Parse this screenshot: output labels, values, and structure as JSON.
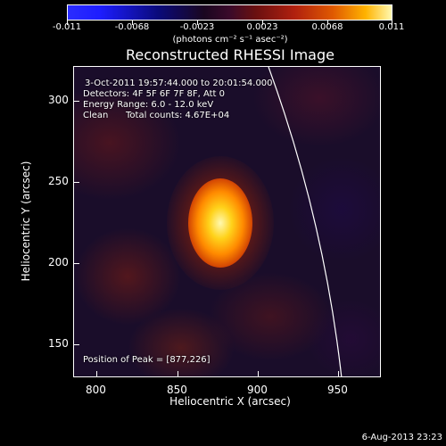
{
  "colorbar": {
    "ticks": [
      "-0.011",
      "-0.0068",
      "-0.0023",
      "0.0023",
      "0.0068",
      "0.011"
    ],
    "unit_text": "(photons cm⁻² s⁻¹ asec⁻²)"
  },
  "title": "Reconstructed RHESSI Image",
  "info": {
    "time_range": "3-Oct-2011 19:57:44.000 to 20:01:54.000",
    "detectors": "Detectors: 4F 5F 6F 7F 8F, Att 0",
    "energy_range": "Energy Range: 6.0 - 12.0 keV",
    "clean_label": "Clean",
    "total_counts": "Total counts: 4.67E+04",
    "peak_position": "Position of Peak = [877,226]"
  },
  "axes": {
    "x_title": "Heliocentric X (arcsec)",
    "y_title": "Heliocentric Y (arcsec)",
    "x_ticks": [
      "800",
      "850",
      "900",
      "950"
    ],
    "y_ticks": [
      "300",
      "250",
      "200",
      "150"
    ]
  },
  "footer": {
    "timestamp": "6-Aug-2013 23:23"
  },
  "colors": {
    "background": "#000000",
    "limb": "#ffffff",
    "peak_core": "#fff9b0"
  }
}
